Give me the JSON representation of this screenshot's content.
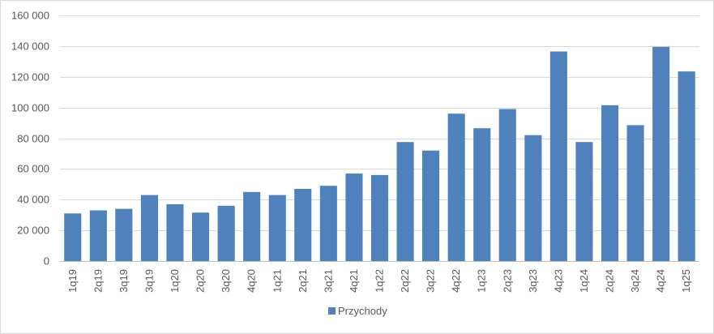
{
  "chart_data": {
    "type": "bar",
    "title": "",
    "xlabel": "",
    "ylabel": "",
    "categories": [
      "1q19",
      "2q19",
      "3q19",
      "3q19",
      "1q20",
      "2q20",
      "3q20",
      "4q20",
      "1q21",
      "2q21",
      "3q21",
      "4q21",
      "1q22",
      "2q22",
      "3q22",
      "4q22",
      "1q23",
      "2q23",
      "3q23",
      "4q23",
      "1q24",
      "2q24",
      "3q24",
      "4q24",
      "1q25"
    ],
    "series": [
      {
        "name": "Przychody",
        "color": "#4f81bd",
        "values": [
          31000,
          33000,
          34000,
          43000,
          37000,
          31500,
          36000,
          45000,
          43000,
          47000,
          49000,
          57000,
          56000,
          77500,
          72000,
          96000,
          86500,
          99000,
          82000,
          136500,
          77500,
          101500,
          88500,
          139500,
          123500
        ]
      }
    ],
    "ylim": [
      0,
      160000
    ],
    "yticks": [
      0,
      20000,
      40000,
      60000,
      80000,
      100000,
      120000,
      140000,
      160000
    ],
    "ytick_labels": [
      "0",
      "20 000",
      "40 000",
      "60 000",
      "80 000",
      "100 000",
      "120 000",
      "140 000",
      "160 000"
    ],
    "grid": true,
    "legend_position": "bottom"
  }
}
